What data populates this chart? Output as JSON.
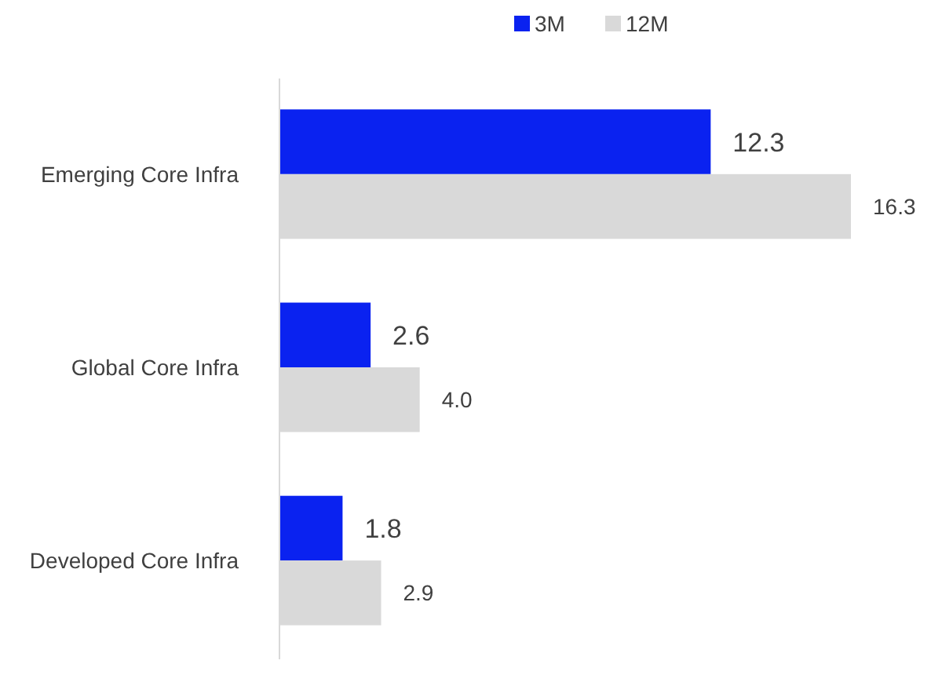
{
  "chart_data": {
    "type": "bar",
    "orientation": "horizontal",
    "categories": [
      "Emerging Core Infra",
      "Global Core Infra",
      "Developed Core Infra"
    ],
    "series": [
      {
        "name": "3M",
        "color": "#0a22f0",
        "values": [
          12.3,
          2.6,
          1.8
        ],
        "value_labels": [
          "12.3",
          "2.6",
          "1.8"
        ]
      },
      {
        "name": "12M",
        "color": "#d9d9d9",
        "values": [
          16.3,
          4.0,
          2.9
        ],
        "value_labels": [
          "16.3",
          "4.0",
          "2.9"
        ]
      }
    ],
    "legend": "top",
    "tick_labels": "y"
  }
}
